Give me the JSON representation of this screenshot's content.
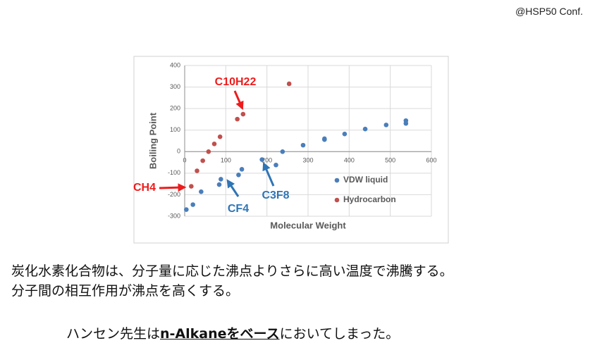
{
  "header": {
    "credit": "@HSP50 Conf."
  },
  "chart_data": {
    "type": "scatter",
    "xlabel": "Molecular Weight",
    "ylabel": "Boiling Point",
    "xlim": [
      0,
      600
    ],
    "ylim": [
      -300,
      400
    ],
    "xticks": [
      0,
      100,
      200,
      300,
      400,
      500,
      600
    ],
    "yticks": [
      -300,
      -200,
      -100,
      0,
      100,
      200,
      300,
      400
    ],
    "grid": true,
    "legend": "right",
    "series": [
      {
        "name": "VDW liquid",
        "color": "#4a7ebb",
        "x": [
          4,
          20,
          40,
          84,
          88,
          131,
          139,
          188,
          222,
          238,
          288,
          340,
          340,
          389,
          439,
          490,
          538,
          538
        ],
        "values": [
          -269,
          -246,
          -186,
          -153,
          -128,
          -108,
          -82,
          -37,
          -62,
          0,
          30,
          56,
          60,
          82,
          105,
          124,
          144,
          131
        ]
      },
      {
        "name": "Hydrocarbon",
        "color": "#c0504d",
        "x": [
          16,
          30,
          44,
          58,
          72,
          86,
          128,
          142,
          254
        ],
        "values": [
          -161,
          -89,
          -42,
          0,
          36,
          69,
          151,
          174,
          315
        ]
      }
    ],
    "annotations": [
      {
        "text": "C10H22",
        "color": "#ee1c1c"
      },
      {
        "text": "CH4",
        "color": "#ee1c1c"
      },
      {
        "text": "CF4",
        "color": "#2e75b6"
      },
      {
        "text": "C3F8",
        "color": "#2e75b6"
      }
    ]
  },
  "body": {
    "lines": [
      "炭化水素化合物は、分子量に応じた沸点よりさらに高い温度で沸騰する。",
      "分子間の相互作用が沸点を高くする。"
    ],
    "note": [
      "ハンセン先生は",
      "n-Alkaneをベース",
      "においてしまった。"
    ]
  }
}
